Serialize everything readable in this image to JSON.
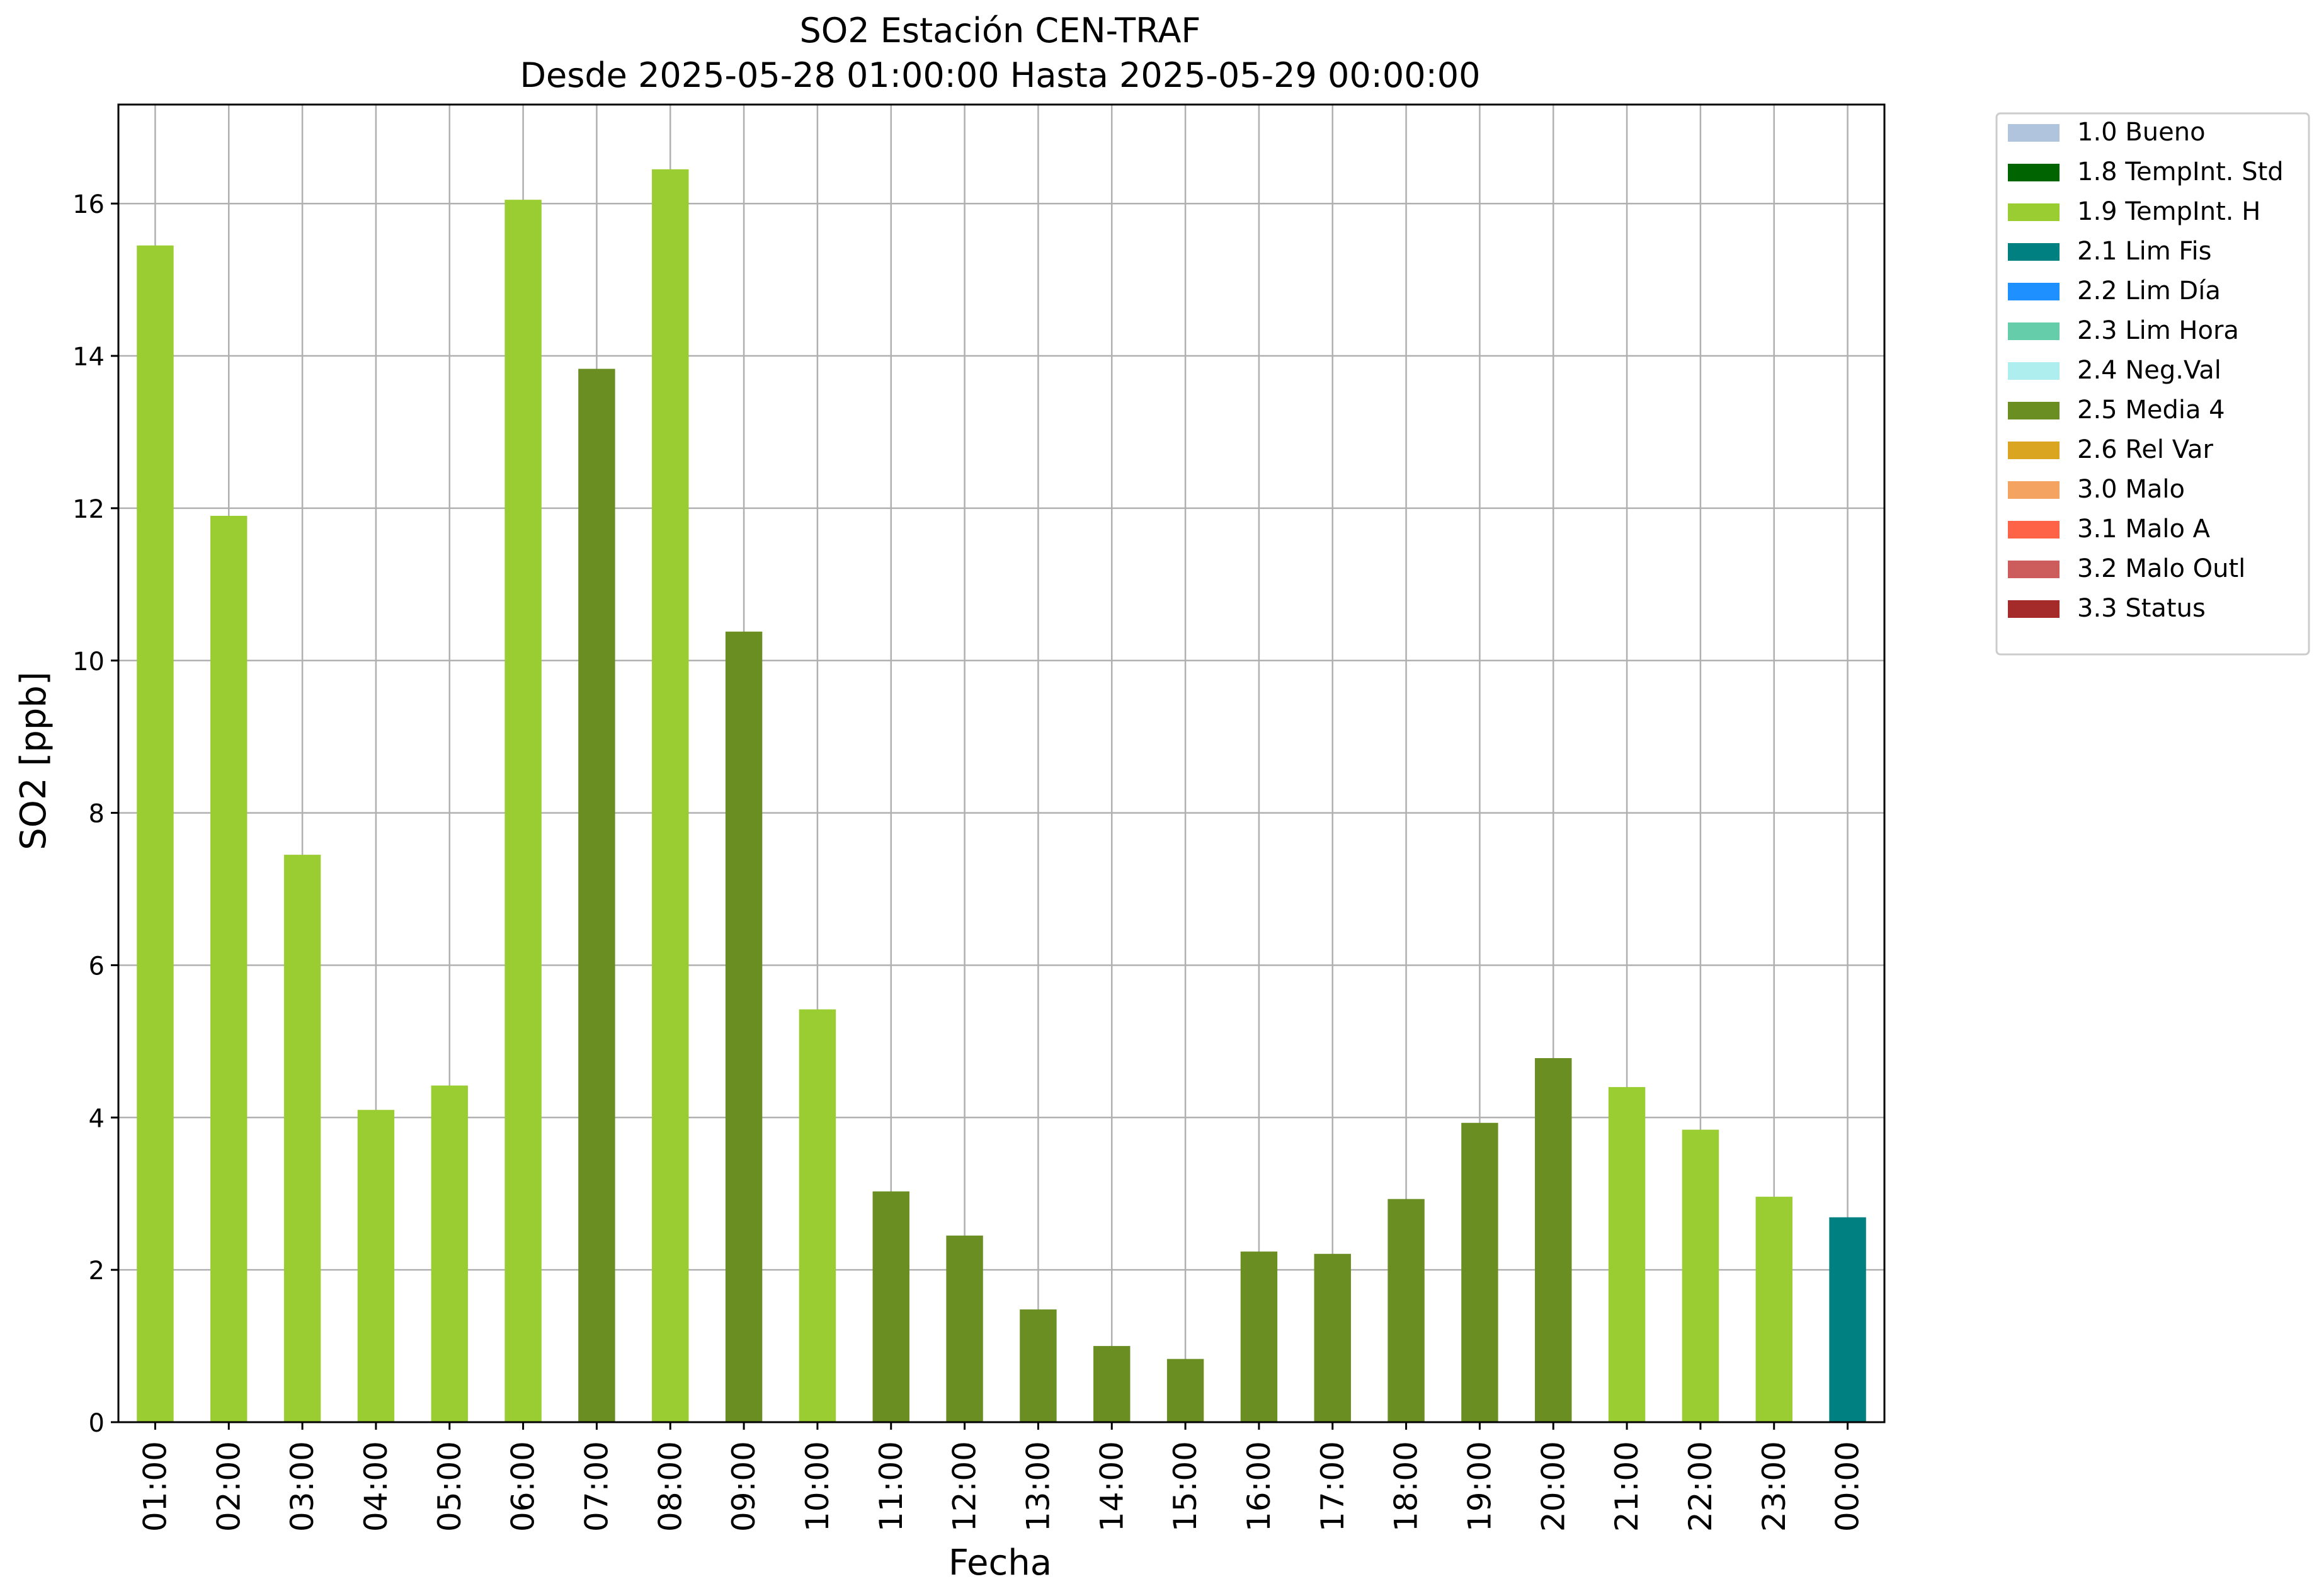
{
  "chart_data": {
    "type": "bar",
    "title": "SO2 Estación CEN-TRAF",
    "subtitle": "Desde 2025-05-28 01:00:00 Hasta 2025-05-29 00:00:00",
    "xlabel": "Fecha",
    "ylabel": "SO2 [ppb]",
    "ylim": [
      0,
      17.3
    ],
    "yticks": [
      0,
      2,
      4,
      6,
      8,
      10,
      12,
      14,
      16
    ],
    "grid": true,
    "legend_position": "outside-top-right",
    "categories": [
      "01:00",
      "02:00",
      "03:00",
      "04:00",
      "05:00",
      "06:00",
      "07:00",
      "08:00",
      "09:00",
      "10:00",
      "11:00",
      "12:00",
      "13:00",
      "14:00",
      "15:00",
      "16:00",
      "17:00",
      "18:00",
      "19:00",
      "20:00",
      "21:00",
      "22:00",
      "23:00",
      "00:00"
    ],
    "values": [
      15.45,
      11.9,
      7.45,
      4.1,
      4.42,
      16.05,
      13.83,
      16.45,
      10.38,
      5.42,
      3.03,
      2.45,
      1.48,
      1.0,
      0.83,
      2.24,
      2.21,
      2.93,
      3.93,
      4.78,
      4.4,
      3.84,
      2.96,
      2.69
    ],
    "flags": [
      "1.9",
      "1.9",
      "1.9",
      "1.9",
      "1.9",
      "1.9",
      "2.5",
      "1.9",
      "2.5",
      "1.9",
      "2.5",
      "2.5",
      "2.5",
      "2.5",
      "2.5",
      "2.5",
      "2.5",
      "2.5",
      "2.5",
      "2.5",
      "1.9",
      "1.9",
      "1.9",
      "2.1"
    ],
    "legend": [
      {
        "code": "1.0",
        "label": "1.0 Bueno",
        "color": "#b0c4de"
      },
      {
        "code": "1.8",
        "label": "1.8 TempInt. Std",
        "color": "#006400"
      },
      {
        "code": "1.9",
        "label": "1.9 TempInt. H",
        "color": "#9acd32"
      },
      {
        "code": "2.1",
        "label": "2.1 Lim Fis",
        "color": "#008080"
      },
      {
        "code": "2.2",
        "label": "2.2 Lim Día",
        "color": "#1e90ff"
      },
      {
        "code": "2.3",
        "label": "2.3 Lim Hora",
        "color": "#66cdaa"
      },
      {
        "code": "2.4",
        "label": "2.4 Neg.Val",
        "color": "#afeeee"
      },
      {
        "code": "2.5",
        "label": "2.5 Media 4",
        "color": "#6b8e23"
      },
      {
        "code": "2.6",
        "label": "2.6 Rel Var",
        "color": "#daa520"
      },
      {
        "code": "3.0",
        "label": "3.0 Malo",
        "color": "#f4a460"
      },
      {
        "code": "3.1",
        "label": "3.1 Malo A",
        "color": "#ff6347"
      },
      {
        "code": "3.2",
        "label": "3.2 Malo Outl",
        "color": "#cd5c5c"
      },
      {
        "code": "3.3",
        "label": "3.3 Status",
        "color": "#a52a2a"
      }
    ]
  }
}
